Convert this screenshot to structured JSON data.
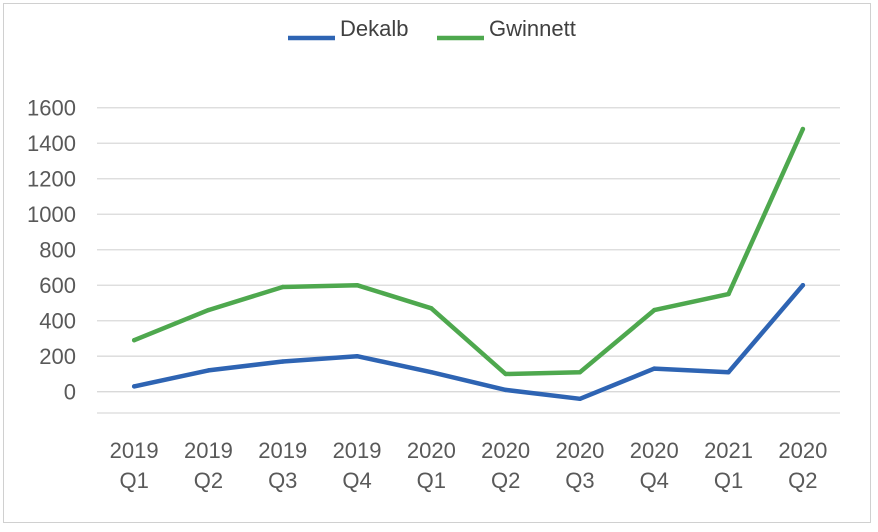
{
  "chart_data": {
    "type": "line",
    "categories": [
      [
        "2019",
        "Q1"
      ],
      [
        "2019",
        "Q2"
      ],
      [
        "2019",
        "Q3"
      ],
      [
        "2019",
        "Q4"
      ],
      [
        "2020",
        "Q1"
      ],
      [
        "2020",
        "Q2"
      ],
      [
        "2020",
        "Q3"
      ],
      [
        "2020",
        "Q4"
      ],
      [
        "2021",
        "Q1"
      ],
      [
        "2020",
        "Q2"
      ]
    ],
    "series": [
      {
        "name": "Dekalb",
        "color": "#2e64b3",
        "values": [
          30,
          120,
          170,
          200,
          110,
          10,
          -40,
          130,
          110,
          600
        ]
      },
      {
        "name": "Gwinnett",
        "color": "#4ea84e",
        "values": [
          290,
          460,
          590,
          600,
          470,
          100,
          110,
          460,
          550,
          1480
        ]
      }
    ],
    "y_ticks": [
      0,
      200,
      400,
      600,
      800,
      1000,
      1200,
      1400,
      1600
    ],
    "ylim": [
      -120,
      1700
    ],
    "grid": true,
    "legend_position": "top-center"
  }
}
